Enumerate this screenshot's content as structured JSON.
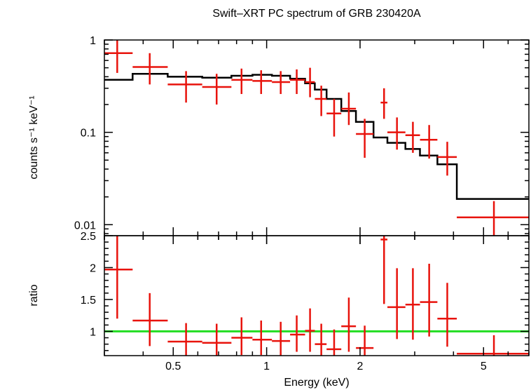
{
  "chart_data": {
    "title": "Swift–XRT PC spectrum of GRB 230420A",
    "xlabel": "Energy (keV)",
    "x_scale": "log",
    "xlim": [
      0.3,
      7.0
    ],
    "x_ticks": [
      {
        "value": 0.5,
        "label": "0.5"
      },
      {
        "value": 1,
        "label": "1"
      },
      {
        "value": 2,
        "label": "2"
      },
      {
        "value": 5,
        "label": "5"
      }
    ],
    "grid": false,
    "colors": {
      "data": "#e8130c",
      "model": "#000000",
      "unity": "#22dd22",
      "frame": "#000000"
    },
    "panels": [
      {
        "id": "spectrum",
        "ylabel": "counts s⁻¹ keV⁻¹",
        "y_scale": "log",
        "ylim": [
          0.0076,
          1.0
        ],
        "y_ticks": [
          {
            "value": 1,
            "label": "1"
          },
          {
            "value": 0.1,
            "label": "0.1"
          },
          {
            "value": 0.01,
            "label": "0.01"
          }
        ],
        "series": [
          {
            "type": "errorbar",
            "role": "data",
            "points": [
              {
                "x": 0.33,
                "xlo": 0.3,
                "xhi": 0.37,
                "y": 0.72,
                "ylo": 0.44,
                "yhi": 1.0
              },
              {
                "x": 0.42,
                "xlo": 0.37,
                "xhi": 0.48,
                "y": 0.51,
                "ylo": 0.33,
                "yhi": 0.72
              },
              {
                "x": 0.55,
                "xlo": 0.48,
                "xhi": 0.62,
                "y": 0.33,
                "ylo": 0.21,
                "yhi": 0.46
              },
              {
                "x": 0.69,
                "xlo": 0.62,
                "xhi": 0.77,
                "y": 0.31,
                "ylo": 0.2,
                "yhi": 0.43
              },
              {
                "x": 0.83,
                "xlo": 0.77,
                "xhi": 0.9,
                "y": 0.37,
                "ylo": 0.26,
                "yhi": 0.49
              },
              {
                "x": 0.96,
                "xlo": 0.9,
                "xhi": 1.04,
                "y": 0.36,
                "ylo": 0.26,
                "yhi": 0.47
              },
              {
                "x": 1.11,
                "xlo": 1.04,
                "xhi": 1.19,
                "y": 0.35,
                "ylo": 0.26,
                "yhi": 0.46
              },
              {
                "x": 1.25,
                "xlo": 1.19,
                "xhi": 1.33,
                "y": 0.37,
                "ylo": 0.26,
                "yhi": 0.48
              },
              {
                "x": 1.38,
                "xlo": 1.33,
                "xhi": 1.43,
                "y": 0.35,
                "ylo": 0.24,
                "yhi": 0.5
              },
              {
                "x": 1.5,
                "xlo": 1.43,
                "xhi": 1.56,
                "y": 0.23,
                "ylo": 0.15,
                "yhi": 0.32
              },
              {
                "x": 1.65,
                "xlo": 1.56,
                "xhi": 1.74,
                "y": 0.16,
                "ylo": 0.09,
                "yhi": 0.23
              },
              {
                "x": 1.84,
                "xlo": 1.74,
                "xhi": 1.94,
                "y": 0.18,
                "ylo": 0.12,
                "yhi": 0.27
              },
              {
                "x": 2.07,
                "xlo": 1.94,
                "xhi": 2.21,
                "y": 0.096,
                "ylo": 0.053,
                "yhi": 0.14
              },
              {
                "x": 2.39,
                "xlo": 2.33,
                "xhi": 2.45,
                "y": 0.21,
                "ylo": 0.14,
                "yhi": 0.3
              },
              {
                "x": 2.63,
                "xlo": 2.45,
                "xhi": 2.8,
                "y": 0.1,
                "ylo": 0.065,
                "yhi": 0.145
              },
              {
                "x": 2.96,
                "xlo": 2.8,
                "xhi": 3.12,
                "y": 0.093,
                "ylo": 0.06,
                "yhi": 0.13
              },
              {
                "x": 3.34,
                "xlo": 3.12,
                "xhi": 3.55,
                "y": 0.083,
                "ylo": 0.052,
                "yhi": 0.12
              },
              {
                "x": 3.82,
                "xlo": 3.55,
                "xhi": 4.1,
                "y": 0.054,
                "ylo": 0.034,
                "yhi": 0.079
              },
              {
                "x": 5.4,
                "xlo": 4.1,
                "xhi": 7.0,
                "y": 0.012,
                "ylo": 0.0076,
                "yhi": 0.018
              }
            ]
          },
          {
            "type": "step",
            "role": "model",
            "bins": [
              {
                "xlo": 0.3,
                "xhi": 0.37,
                "y": 0.37
              },
              {
                "xlo": 0.37,
                "xhi": 0.48,
                "y": 0.43
              },
              {
                "xlo": 0.48,
                "xhi": 0.62,
                "y": 0.4
              },
              {
                "xlo": 0.62,
                "xhi": 0.77,
                "y": 0.39
              },
              {
                "xlo": 0.77,
                "xhi": 0.9,
                "y": 0.41
              },
              {
                "xlo": 0.9,
                "xhi": 1.04,
                "y": 0.42
              },
              {
                "xlo": 1.04,
                "xhi": 1.19,
                "y": 0.41
              },
              {
                "xlo": 1.19,
                "xhi": 1.33,
                "y": 0.38
              },
              {
                "xlo": 1.33,
                "xhi": 1.43,
                "y": 0.34
              },
              {
                "xlo": 1.43,
                "xhi": 1.56,
                "y": 0.29
              },
              {
                "xlo": 1.56,
                "xhi": 1.74,
                "y": 0.23
              },
              {
                "xlo": 1.74,
                "xhi": 1.94,
                "y": 0.17
              },
              {
                "xlo": 1.94,
                "xhi": 2.21,
                "y": 0.13
              },
              {
                "xlo": 2.21,
                "xhi": 2.45,
                "y": 0.088
              },
              {
                "xlo": 2.45,
                "xhi": 2.8,
                "y": 0.077
              },
              {
                "xlo": 2.8,
                "xhi": 3.12,
                "y": 0.066
              },
              {
                "xlo": 3.12,
                "xhi": 3.55,
                "y": 0.056
              },
              {
                "xlo": 3.55,
                "xhi": 4.1,
                "y": 0.045
              },
              {
                "xlo": 4.1,
                "xhi": 7.0,
                "y": 0.019
              }
            ]
          }
        ]
      },
      {
        "id": "ratio",
        "ylabel": "ratio",
        "y_scale": "linear",
        "ylim": [
          0.62,
          2.5
        ],
        "y_ticks": [
          {
            "value": 2.5,
            "label": "2.5"
          },
          {
            "value": 2,
            "label": "2"
          },
          {
            "value": 1.5,
            "label": "1.5"
          },
          {
            "value": 1,
            "label": "1"
          }
        ],
        "reference_line": 1,
        "series": [
          {
            "type": "errorbar",
            "role": "data",
            "points": [
              {
                "x": 0.33,
                "xlo": 0.3,
                "xhi": 0.37,
                "y": 1.97,
                "ylo": 1.2,
                "yhi": 2.5
              },
              {
                "x": 0.42,
                "xlo": 0.37,
                "xhi": 0.48,
                "y": 1.17,
                "ylo": 0.77,
                "yhi": 1.6
              },
              {
                "x": 0.55,
                "xlo": 0.48,
                "xhi": 0.62,
                "y": 0.84,
                "ylo": 0.62,
                "yhi": 1.13
              },
              {
                "x": 0.69,
                "xlo": 0.62,
                "xhi": 0.77,
                "y": 0.82,
                "ylo": 0.62,
                "yhi": 1.12
              },
              {
                "x": 0.83,
                "xlo": 0.77,
                "xhi": 0.9,
                "y": 0.9,
                "ylo": 0.63,
                "yhi": 1.22
              },
              {
                "x": 0.96,
                "xlo": 0.9,
                "xhi": 1.04,
                "y": 0.87,
                "ylo": 0.63,
                "yhi": 1.17
              },
              {
                "x": 1.11,
                "xlo": 1.04,
                "xhi": 1.19,
                "y": 0.85,
                "ylo": 0.62,
                "yhi": 1.15
              },
              {
                "x": 1.25,
                "xlo": 1.19,
                "xhi": 1.33,
                "y": 0.95,
                "ylo": 0.68,
                "yhi": 1.25
              },
              {
                "x": 1.38,
                "xlo": 1.33,
                "xhi": 1.43,
                "y": 1.01,
                "ylo": 0.68,
                "yhi": 1.36
              },
              {
                "x": 1.5,
                "xlo": 1.43,
                "xhi": 1.56,
                "y": 0.8,
                "ylo": 0.62,
                "yhi": 1.12
              },
              {
                "x": 1.65,
                "xlo": 1.56,
                "xhi": 1.74,
                "y": 0.72,
                "ylo": 0.62,
                "yhi": 1.03
              },
              {
                "x": 1.84,
                "xlo": 1.74,
                "xhi": 1.94,
                "y": 1.08,
                "ylo": 0.68,
                "yhi": 1.53
              },
              {
                "x": 2.07,
                "xlo": 1.94,
                "xhi": 2.21,
                "y": 0.74,
                "ylo": 0.62,
                "yhi": 1.09
              },
              {
                "x": 2.39,
                "xlo": 2.33,
                "xhi": 2.45,
                "y": 2.44,
                "ylo": 1.43,
                "yhi": 2.5
              },
              {
                "x": 2.63,
                "xlo": 2.45,
                "xhi": 2.8,
                "y": 1.38,
                "ylo": 0.88,
                "yhi": 1.99
              },
              {
                "x": 2.96,
                "xlo": 2.8,
                "xhi": 3.12,
                "y": 1.42,
                "ylo": 0.87,
                "yhi": 1.99
              },
              {
                "x": 3.34,
                "xlo": 3.12,
                "xhi": 3.55,
                "y": 1.46,
                "ylo": 0.92,
                "yhi": 2.06
              },
              {
                "x": 3.82,
                "xlo": 3.55,
                "xhi": 4.1,
                "y": 1.2,
                "ylo": 0.76,
                "yhi": 1.76
              },
              {
                "x": 5.4,
                "xlo": 4.1,
                "xhi": 7.0,
                "y": 0.65,
                "ylo": 0.62,
                "yhi": 0.94
              }
            ]
          }
        ]
      }
    ]
  }
}
